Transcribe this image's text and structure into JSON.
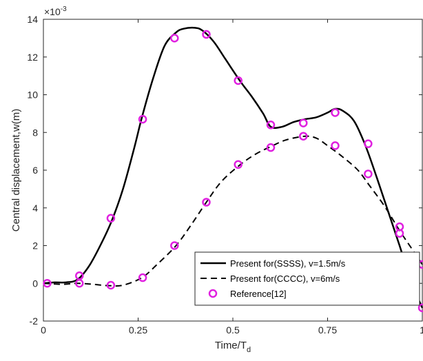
{
  "chart_data": {
    "type": "line",
    "xlabel": "Time/T",
    "xlabel_subscript": "d",
    "ylabel": "Central displacement,w(m)",
    "y_exponent": "×10",
    "y_exponent_power": "-3",
    "xlim": [
      0,
      1
    ],
    "ylim": [
      -2,
      14
    ],
    "x_ticks": [
      0,
      0.25,
      0.5,
      0.75,
      1
    ],
    "x_tick_labels": [
      "0",
      "0.25",
      "0.5",
      "0.75",
      "1"
    ],
    "y_ticks": [
      -2,
      0,
      2,
      4,
      6,
      8,
      10,
      12,
      14
    ],
    "y_tick_labels": [
      "-2",
      "0",
      "2",
      "4",
      "6",
      "8",
      "10",
      "12",
      "14"
    ],
    "grid": false,
    "legend_position": "lower-right",
    "series": [
      {
        "name": "Present for(SSSS), v=1.5m/s",
        "style": "solid",
        "color": "#000000",
        "x": [
          0,
          0.03,
          0.06,
          0.09,
          0.12,
          0.15,
          0.18,
          0.21,
          0.24,
          0.26,
          0.29,
          0.32,
          0.35,
          0.37,
          0.4,
          0.42,
          0.45,
          0.48,
          0.52,
          0.55,
          0.58,
          0.6,
          0.63,
          0.66,
          0.69,
          0.72,
          0.75,
          0.77,
          0.79,
          0.82,
          0.85,
          0.88,
          0.91,
          0.94,
          0.97,
          1.0
        ],
        "y": [
          0.0,
          0.05,
          0.05,
          0.2,
          0.9,
          2.0,
          3.3,
          5.0,
          7.2,
          8.8,
          10.9,
          12.6,
          13.3,
          13.5,
          13.55,
          13.4,
          12.8,
          11.9,
          10.7,
          9.9,
          9.0,
          8.3,
          8.3,
          8.55,
          8.7,
          8.8,
          9.05,
          9.25,
          9.15,
          8.6,
          7.3,
          5.6,
          3.8,
          2.0,
          0.1,
          -1.3
        ]
      },
      {
        "name": "Present for(CCCC), v=6m/s",
        "style": "dashed",
        "color": "#000000",
        "x": [
          0,
          0.05,
          0.09,
          0.13,
          0.17,
          0.21,
          0.26,
          0.3,
          0.35,
          0.39,
          0.43,
          0.47,
          0.52,
          0.56,
          0.6,
          0.64,
          0.69,
          0.72,
          0.75,
          0.79,
          0.83,
          0.86,
          0.9,
          0.94,
          0.97,
          1.0
        ],
        "y": [
          0.0,
          -0.05,
          0.0,
          -0.05,
          -0.12,
          -0.1,
          0.3,
          1.0,
          2.0,
          3.1,
          4.3,
          5.4,
          6.3,
          6.85,
          7.25,
          7.6,
          7.8,
          7.7,
          7.3,
          6.7,
          6.0,
          5.2,
          4.1,
          2.8,
          1.9,
          1.0
        ]
      },
      {
        "name": "Reference[12]",
        "style": "markers",
        "color": "#e020e0",
        "x": [
          0.01,
          0.095,
          0.095,
          0.178,
          0.178,
          0.262,
          0.262,
          0.346,
          0.346,
          0.43,
          0.43,
          0.514,
          0.514,
          0.6,
          0.6,
          0.686,
          0.686,
          0.77,
          0.77,
          0.857,
          0.857,
          0.94,
          0.94,
          1.0,
          1.0
        ],
        "y": [
          0.0,
          0.4,
          0.0,
          3.45,
          -0.1,
          8.7,
          0.3,
          13.0,
          2.0,
          13.2,
          4.3,
          10.75,
          6.3,
          8.4,
          7.2,
          8.5,
          7.8,
          9.05,
          7.3,
          7.4,
          5.8,
          3.0,
          2.65,
          1.0,
          -1.3
        ]
      }
    ]
  }
}
